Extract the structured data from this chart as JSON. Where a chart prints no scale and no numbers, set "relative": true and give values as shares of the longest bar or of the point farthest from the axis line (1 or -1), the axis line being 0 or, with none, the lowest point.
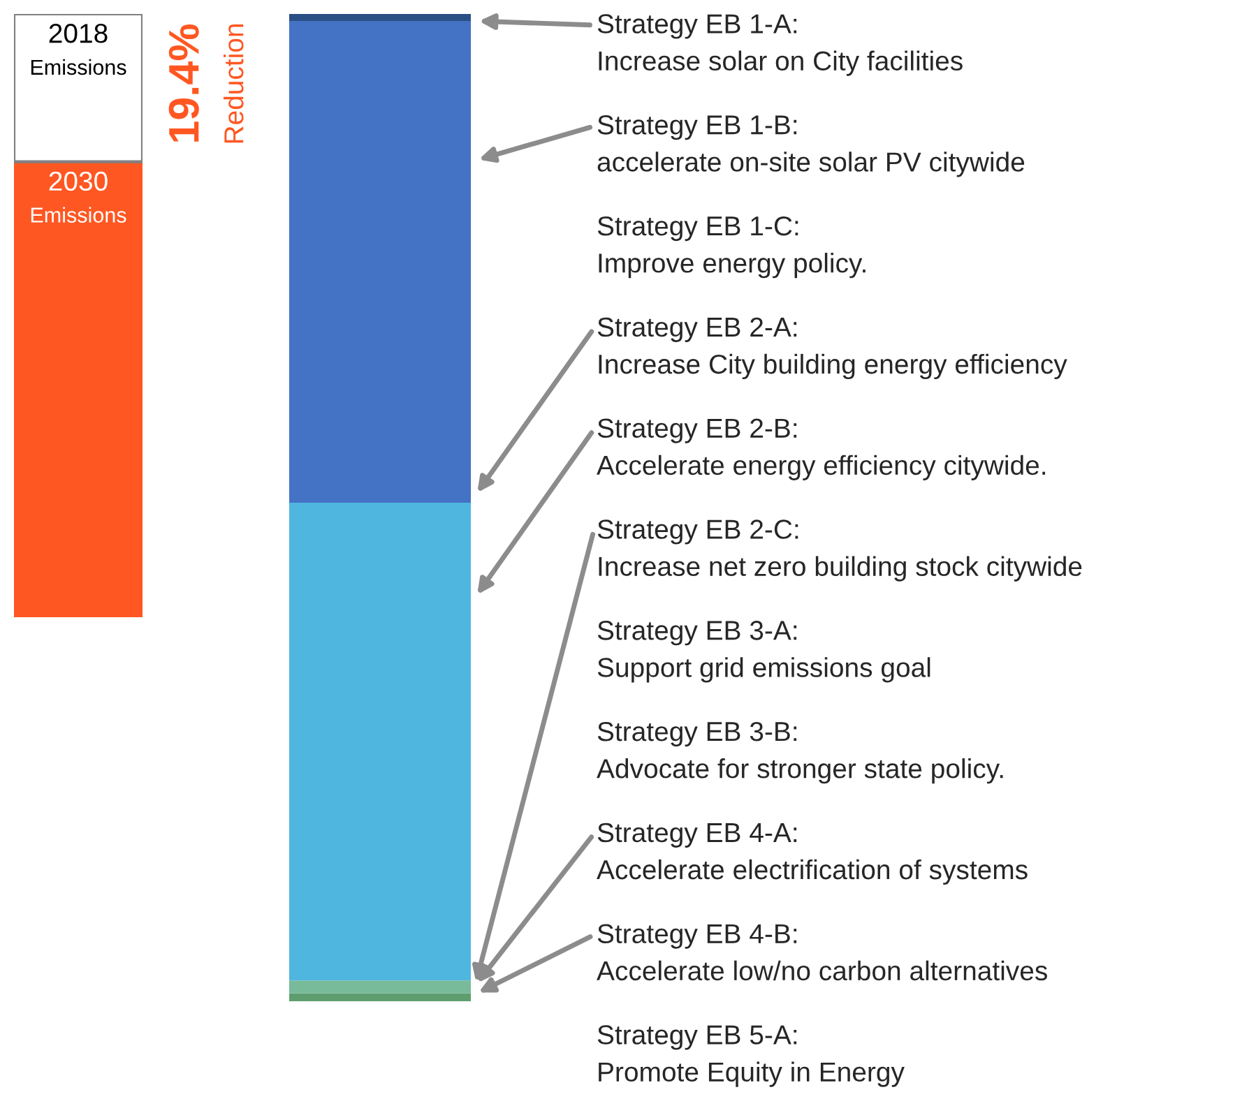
{
  "chart_data": [
    {
      "type": "bar",
      "stacked": true,
      "relative": true,
      "categories": [
        null
      ],
      "legend": false,
      "series": [
        {
          "name": "2030 Emissions",
          "color": "#ff5722",
          "values": [
            0.755
          ]
        },
        {
          "name": "2018 Emissions",
          "color": "#ffffff",
          "values": [
            0.245
          ]
        }
      ],
      "annotations": [
        "19.4% Reduction"
      ]
    },
    {
      "type": "bar",
      "stacked": true,
      "relative": true,
      "categories": [
        null
      ],
      "legend": false,
      "series": [
        {
          "color": "#5e9e6e",
          "values": [
            0.008
          ]
        },
        {
          "color": "#78bb9a",
          "values": [
            0.013
          ]
        },
        {
          "color": "#4fb6e0",
          "values": [
            0.484
          ]
        },
        {
          "color": "#4472c4",
          "values": [
            0.488
          ]
        },
        {
          "color": "#2b4e86",
          "values": [
            0.007
          ]
        }
      ],
      "annotations": [
        "Strategy EB 1-A: Increase solar on City facilities",
        "Strategy EB 1-B: accelerate on-site solar PV citywide",
        "Strategy EB 1-C: Improve energy policy.",
        "Strategy EB 2-A: Increase City building energy efficiency",
        "Strategy EB 2-B: Accelerate energy efficiency citywide.",
        "Strategy EB 2-C: Increase net zero building stock citywide",
        "Strategy EB 3-A: Support grid emissions goal",
        "Strategy EB 3-B: Advocate for stronger state policy.",
        "Strategy EB 4-A: Accelerate electrification of systems",
        "Strategy EB 4-B: Accelerate low/no carbon alternatives",
        "Strategy EB 5-A: Promote Equity in Energy"
      ]
    }
  ]
}
